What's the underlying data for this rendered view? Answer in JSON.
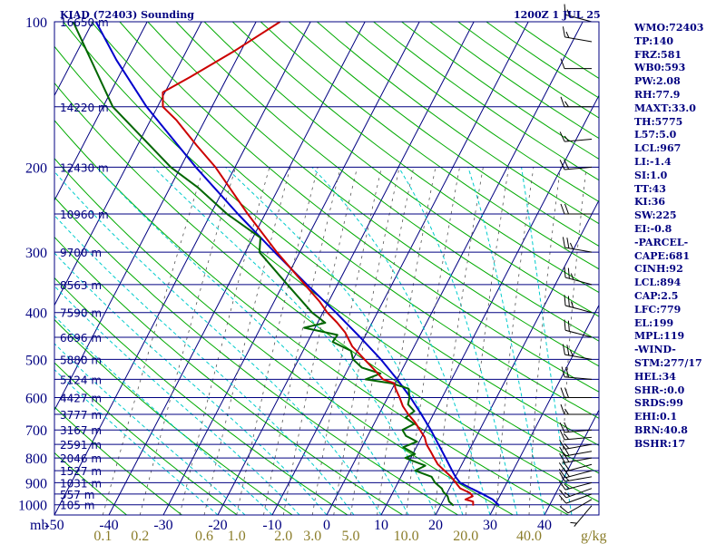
{
  "header": {
    "station": "KIAD (72403) Sounding",
    "time": "1200Z  1 JUL 25"
  },
  "indices": [
    "WMO:72403",
    "TP:140",
    "FRZ:581",
    "WB0:593",
    "PW:2.08",
    "RH:77.9",
    "MAXT:33.0",
    "TH:5775",
    "L57:5.0",
    "LCL:967",
    "LI:-1.4",
    "SI:1.0",
    "TT:43",
    "KI:36",
    "SW:225",
    "EI:-0.8",
    "-PARCEL-",
    "CAPE:681",
    "CINH:92",
    "LCL:894",
    "CAP:2.5",
    "LFC:779",
    "EL:199",
    "MPL:119",
    "-WIND-",
    "STM:277/17",
    "HEL:34",
    "SHR-:0.0",
    "SRDS:99",
    "EHI:0.1",
    "BRN:40.8",
    "BSHR:17"
  ],
  "colors": {
    "axes": "#000080",
    "isotherm": "#000080",
    "dry_adiabat": "#00aa00",
    "moist_adiabat": "#00cccc",
    "mixing_ratio": "#555555",
    "temperature": "#cc0000",
    "dewpoint": "#006600",
    "parcel": "#0000cc",
    "wind_barb": "#000000",
    "olive_text": "#8b7d2a"
  },
  "chart_data": {
    "type": "skew-t",
    "pressure_unit": "mb",
    "mixing_ratio_unit": "g/kg",
    "pressure_levels": [
      {
        "p": 100,
        "label": "100",
        "height": "16650 m"
      },
      {
        "p": 150,
        "label": "",
        "height": "14220 m"
      },
      {
        "p": 200,
        "label": "200",
        "height": "12430 m"
      },
      {
        "p": 250,
        "label": "",
        "height": "10960 m"
      },
      {
        "p": 300,
        "label": "300",
        "height": "9700 m"
      },
      {
        "p": 350,
        "label": "",
        "height": "8563 m"
      },
      {
        "p": 400,
        "label": "400",
        "height": "7590 m"
      },
      {
        "p": 450,
        "label": "",
        "height": "6696 m"
      },
      {
        "p": 500,
        "label": "500",
        "height": "5880 m"
      },
      {
        "p": 550,
        "label": "",
        "height": "5124 m"
      },
      {
        "p": 600,
        "label": "600",
        "height": "4427 m"
      },
      {
        "p": 650,
        "label": "",
        "height": "3777 m"
      },
      {
        "p": 700,
        "label": "700",
        "height": "3167 m"
      },
      {
        "p": 750,
        "label": "",
        "height": "2591 m"
      },
      {
        "p": 800,
        "label": "800",
        "height": "2046 m"
      },
      {
        "p": 850,
        "label": "",
        "height": "1527 m"
      },
      {
        "p": 900,
        "label": "900",
        "height": "1031 m"
      },
      {
        "p": 950,
        "label": "",
        "height": "557 m"
      },
      {
        "p": 1000,
        "label": "1000",
        "height": "105 m"
      }
    ],
    "temperature_ticks": [
      {
        "t": -50,
        "label": "-50"
      },
      {
        "t": -40,
        "label": "-40"
      },
      {
        "t": -30,
        "label": "-30"
      },
      {
        "t": -20,
        "label": "-20"
      },
      {
        "t": -10,
        "label": "-10"
      },
      {
        "t": 0,
        "label": "0"
      },
      {
        "t": 10,
        "label": "10"
      },
      {
        "t": 20,
        "label": "20"
      },
      {
        "t": 30,
        "label": "30"
      },
      {
        "t": 40,
        "label": "40"
      }
    ],
    "mixing_ratio_labels": [
      {
        "w": 0.1,
        "label": "0.1"
      },
      {
        "w": 0.2,
        "label": "0.2"
      },
      {
        "w": 0.6,
        "label": "0.6"
      },
      {
        "w": 1.0,
        "label": "1.0"
      },
      {
        "w": 2.0,
        "label": "2.0"
      },
      {
        "w": 3.0,
        "label": "3.0"
      },
      {
        "w": 5.0,
        "label": "5.0"
      },
      {
        "w": 10.0,
        "label": "10.0"
      },
      {
        "w": 20.0,
        "label": "20.0"
      },
      {
        "w": 40.0,
        "label": "40.0"
      }
    ],
    "xlim": [
      -50,
      50
    ],
    "ylim_hpa": [
      1050,
      100
    ],
    "temperature": [
      [
        1004,
        26.0
      ],
      [
        985,
        25.6
      ],
      [
        975,
        24.0
      ],
      [
        960,
        25.0
      ],
      [
        945,
        24.2
      ],
      [
        925,
        22.0
      ],
      [
        900,
        20.6
      ],
      [
        875,
        19.2
      ],
      [
        850,
        17.4
      ],
      [
        825,
        15.6
      ],
      [
        800,
        14.3
      ],
      [
        775,
        13.0
      ],
      [
        750,
        11.6
      ],
      [
        725,
        10.6
      ],
      [
        700,
        9.0
      ],
      [
        675,
        7.4
      ],
      [
        650,
        5.4
      ],
      [
        625,
        3.6
      ],
      [
        600,
        2.2
      ],
      [
        575,
        0.6
      ],
      [
        560,
        -0.2
      ],
      [
        550,
        -2.6
      ],
      [
        530,
        -4.6
      ],
      [
        500,
        -7.9
      ],
      [
        470,
        -11.4
      ],
      [
        440,
        -14.0
      ],
      [
        420,
        -16.4
      ],
      [
        400,
        -19.2
      ],
      [
        380,
        -21.6
      ],
      [
        350,
        -26.0
      ],
      [
        300,
        -34.2
      ],
      [
        250,
        -43.2
      ],
      [
        200,
        -53.6
      ],
      [
        180,
        -59.2
      ],
      [
        160,
        -65.2
      ],
      [
        150,
        -69.0
      ],
      [
        140,
        -70.4
      ],
      [
        130,
        -66.8
      ],
      [
        115,
        -61.2
      ],
      [
        100,
        -55.6
      ]
    ],
    "dewpoint": [
      [
        1004,
        22.4
      ],
      [
        985,
        21.2
      ],
      [
        960,
        20.4
      ],
      [
        940,
        19.2
      ],
      [
        925,
        18.6
      ],
      [
        900,
        16.8
      ],
      [
        875,
        15.6
      ],
      [
        850,
        12.0
      ],
      [
        830,
        13.4
      ],
      [
        800,
        9.0
      ],
      [
        785,
        10.4
      ],
      [
        760,
        7.6
      ],
      [
        740,
        9.6
      ],
      [
        720,
        7.0
      ],
      [
        700,
        5.8
      ],
      [
        680,
        7.4
      ],
      [
        660,
        5.2
      ],
      [
        640,
        6.2
      ],
      [
        620,
        4.4
      ],
      [
        600,
        4.0
      ],
      [
        575,
        3.0
      ],
      [
        560,
        -0.8
      ],
      [
        550,
        -5.8
      ],
      [
        535,
        -3.6
      ],
      [
        520,
        -7.6
      ],
      [
        500,
        -10.0
      ],
      [
        480,
        -11.2
      ],
      [
        460,
        -15.4
      ],
      [
        445,
        -15.2
      ],
      [
        430,
        -22.0
      ],
      [
        420,
        -18.6
      ],
      [
        400,
        -22.0
      ],
      [
        350,
        -29.2
      ],
      [
        300,
        -37.4
      ],
      [
        280,
        -38.6
      ],
      [
        250,
        -47.0
      ],
      [
        220,
        -55.0
      ],
      [
        200,
        -61.8
      ],
      [
        150,
        -78.2
      ],
      [
        100,
        -93.6
      ]
    ],
    "parcel": [
      [
        1004,
        30.8
      ],
      [
        975,
        29.0
      ],
      [
        950,
        26.6
      ],
      [
        925,
        24.0
      ],
      [
        900,
        21.4
      ],
      [
        875,
        20.0
      ],
      [
        850,
        18.8
      ],
      [
        800,
        16.4
      ],
      [
        750,
        13.8
      ],
      [
        700,
        11.0
      ],
      [
        650,
        7.8
      ],
      [
        600,
        4.2
      ],
      [
        550,
        0.0
      ],
      [
        500,
        -4.9
      ],
      [
        450,
        -10.8
      ],
      [
        400,
        -17.6
      ],
      [
        350,
        -25.6
      ],
      [
        300,
        -34.6
      ],
      [
        250,
        -45.0
      ],
      [
        200,
        -57.2
      ],
      [
        150,
        -72.0
      ],
      [
        120,
        -82.0
      ],
      [
        100,
        -89.4
      ]
    ],
    "wind_barbs": [
      {
        "p": 1004,
        "dir": 220,
        "spd": 5
      },
      {
        "p": 975,
        "dir": 240,
        "spd": 10
      },
      {
        "p": 950,
        "dir": 250,
        "spd": 10
      },
      {
        "p": 925,
        "dir": 250,
        "spd": 15
      },
      {
        "p": 900,
        "dir": 255,
        "spd": 15
      },
      {
        "p": 875,
        "dir": 260,
        "spd": 15
      },
      {
        "p": 850,
        "dir": 255,
        "spd": 20
      },
      {
        "p": 825,
        "dir": 255,
        "spd": 20
      },
      {
        "p": 800,
        "dir": 260,
        "spd": 20
      },
      {
        "p": 775,
        "dir": 260,
        "spd": 20
      },
      {
        "p": 750,
        "dir": 260,
        "spd": 15
      },
      {
        "p": 725,
        "dir": 265,
        "spd": 15
      },
      {
        "p": 700,
        "dir": 265,
        "spd": 20
      },
      {
        "p": 650,
        "dir": 270,
        "spd": 15
      },
      {
        "p": 600,
        "dir": 270,
        "spd": 20
      },
      {
        "p": 550,
        "dir": 275,
        "spd": 20
      },
      {
        "p": 500,
        "dir": 280,
        "spd": 25
      },
      {
        "p": 450,
        "dir": 285,
        "spd": 20
      },
      {
        "p": 400,
        "dir": 285,
        "spd": 25
      },
      {
        "p": 350,
        "dir": 285,
        "spd": 25
      },
      {
        "p": 300,
        "dir": 280,
        "spd": 25
      },
      {
        "p": 250,
        "dir": 270,
        "spd": 20
      },
      {
        "p": 200,
        "dir": 265,
        "spd": 20
      },
      {
        "p": 175,
        "dir": 265,
        "spd": 15
      },
      {
        "p": 150,
        "dir": 270,
        "spd": 15
      },
      {
        "p": 125,
        "dir": 270,
        "spd": 10
      },
      {
        "p": 110,
        "dir": 280,
        "spd": 15
      },
      {
        "p": 100,
        "dir": 285,
        "spd": 15
      }
    ]
  }
}
